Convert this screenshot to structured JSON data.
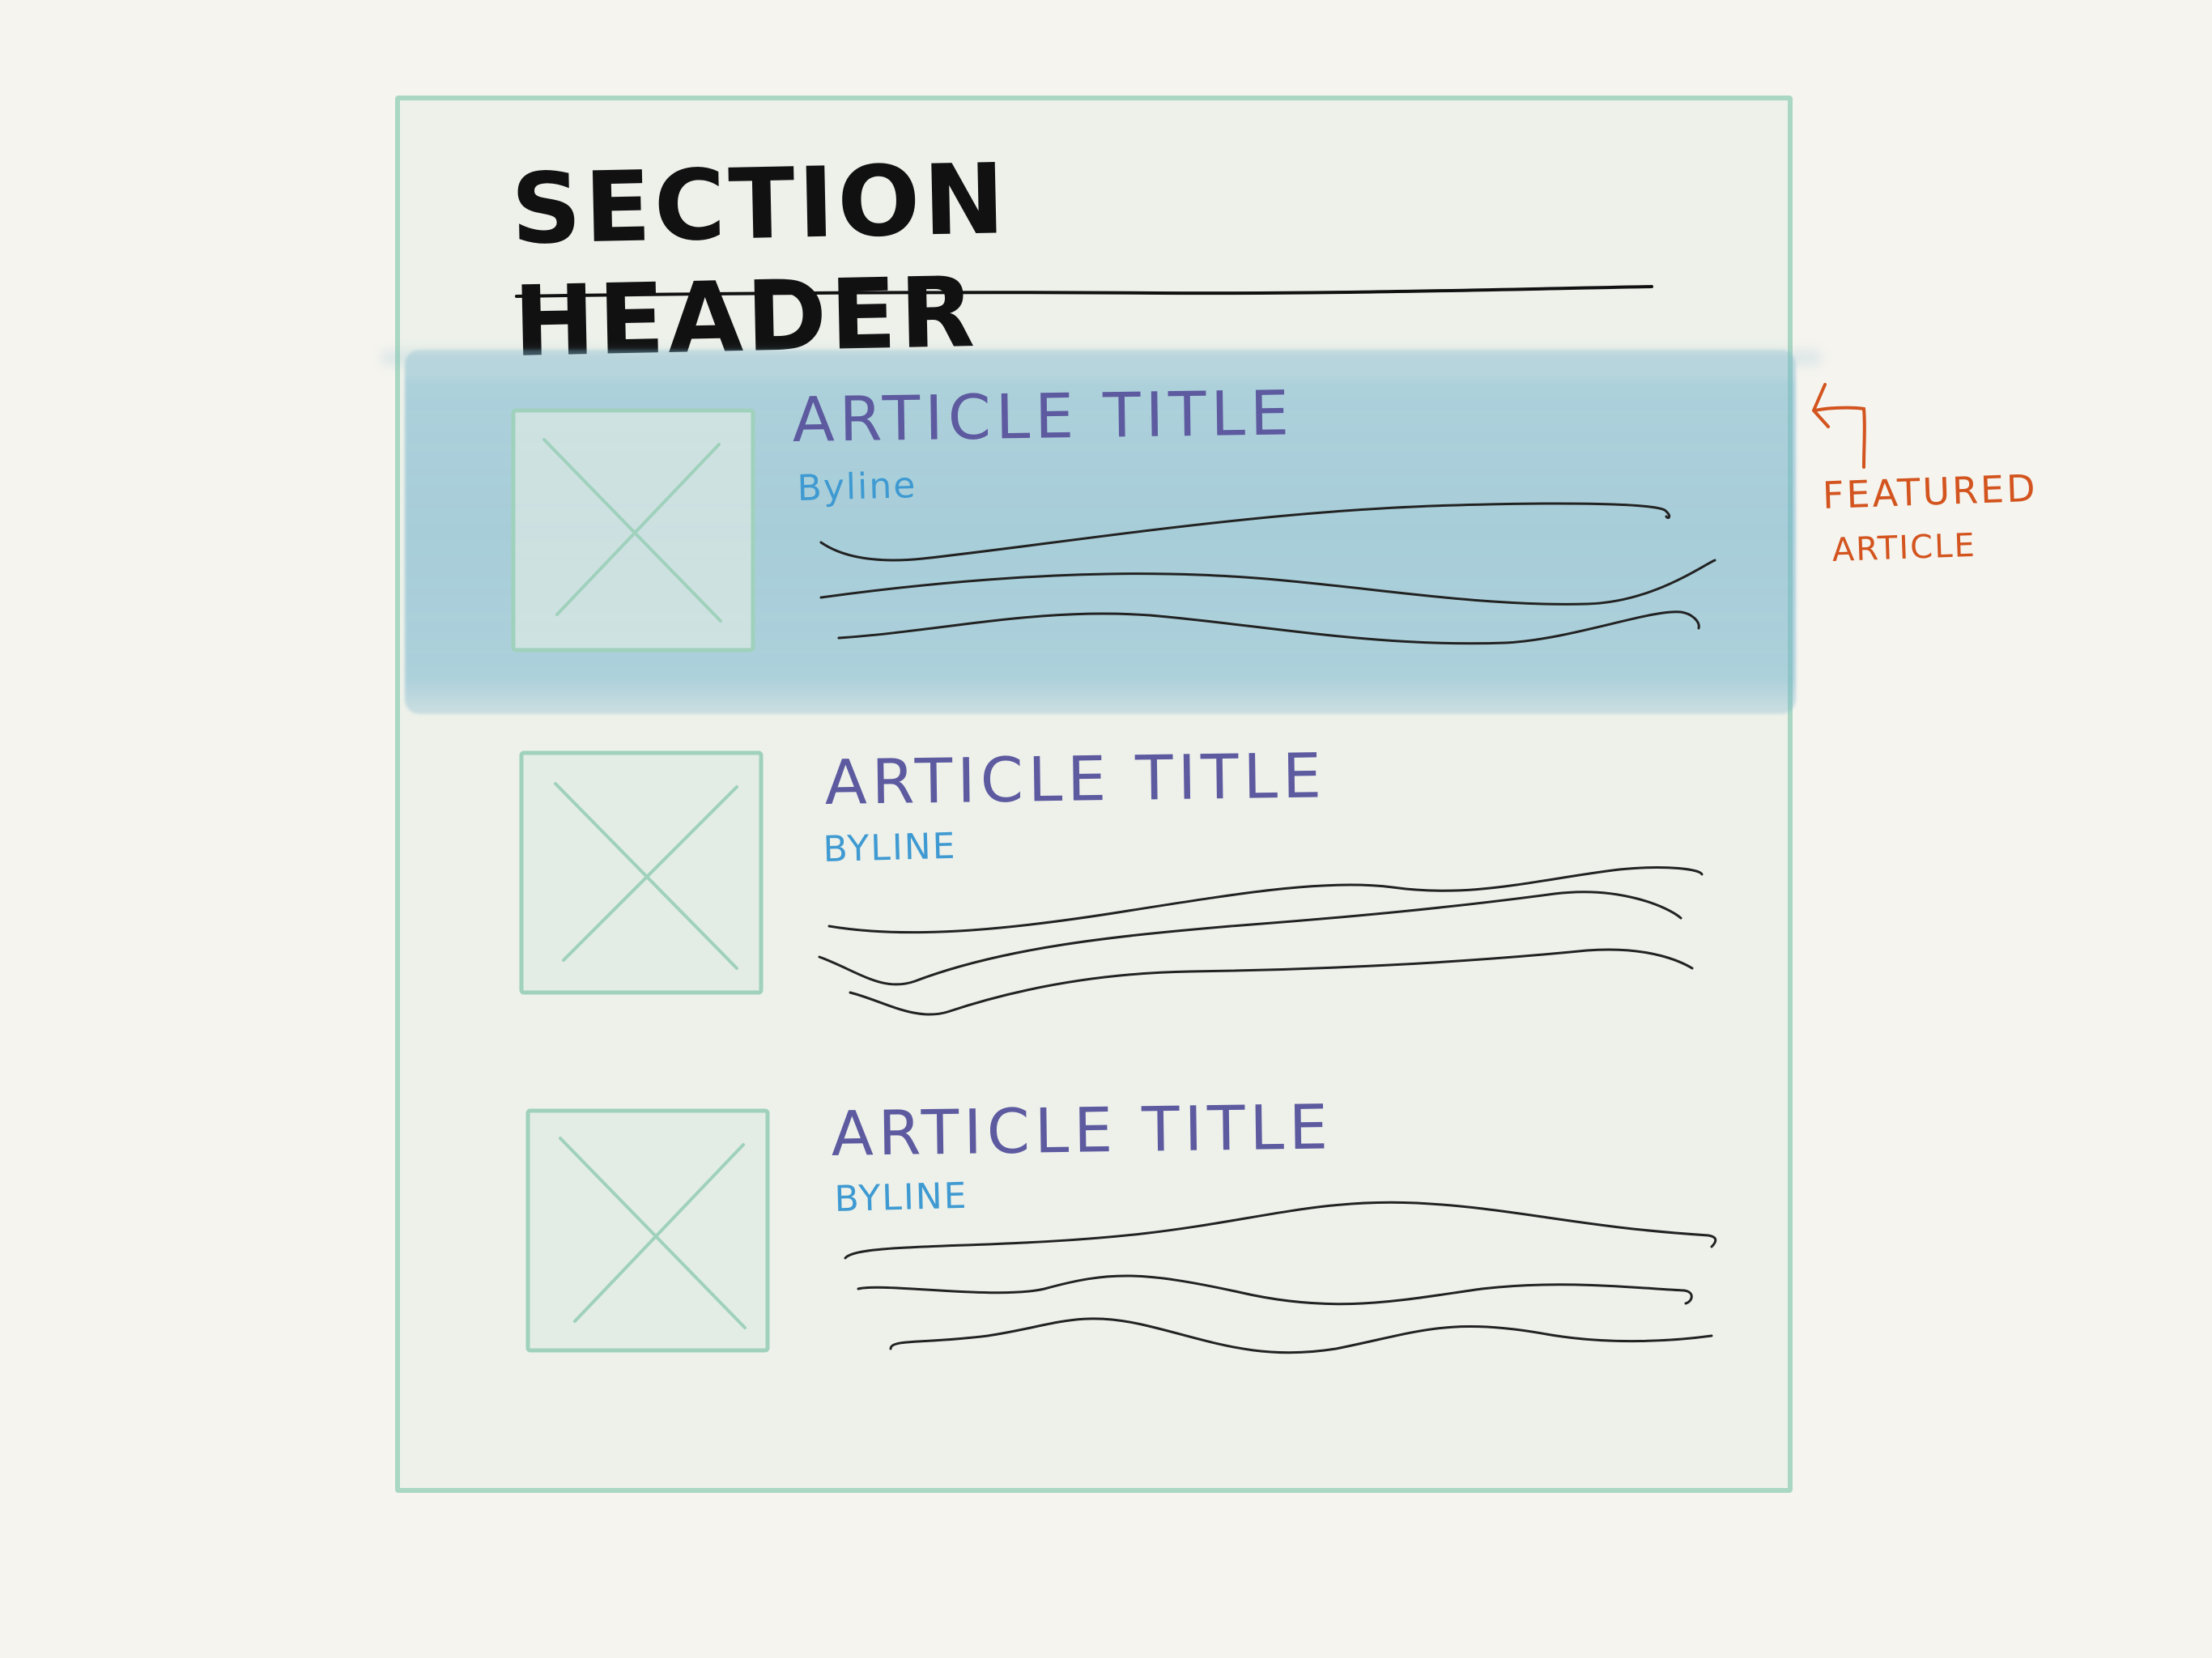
{
  "section": {
    "header": "SECTION HEADER"
  },
  "articles": [
    {
      "title": "ARTICLE TITLE",
      "byline": "Byline",
      "featured": true
    },
    {
      "title": "ARTICLE TITLE",
      "byline": "BYLINE",
      "featured": false
    },
    {
      "title": "ARTICLE TITLE",
      "byline": "BYLINE",
      "featured": false
    }
  ],
  "annotation": {
    "line1": "FEATURED",
    "line2": "ARTICLE"
  },
  "colors": {
    "page_border": "#a9d7c3",
    "page_fill": "#edf1ea",
    "featured_highlight": "#7db5cd",
    "title": "#5d5aa0",
    "byline": "#3f9ad2",
    "annotation": "#d3541e",
    "ink": "#111111"
  },
  "icons": {
    "image_placeholder": "image-placeholder-icon",
    "arrow": "arrow-icon"
  }
}
